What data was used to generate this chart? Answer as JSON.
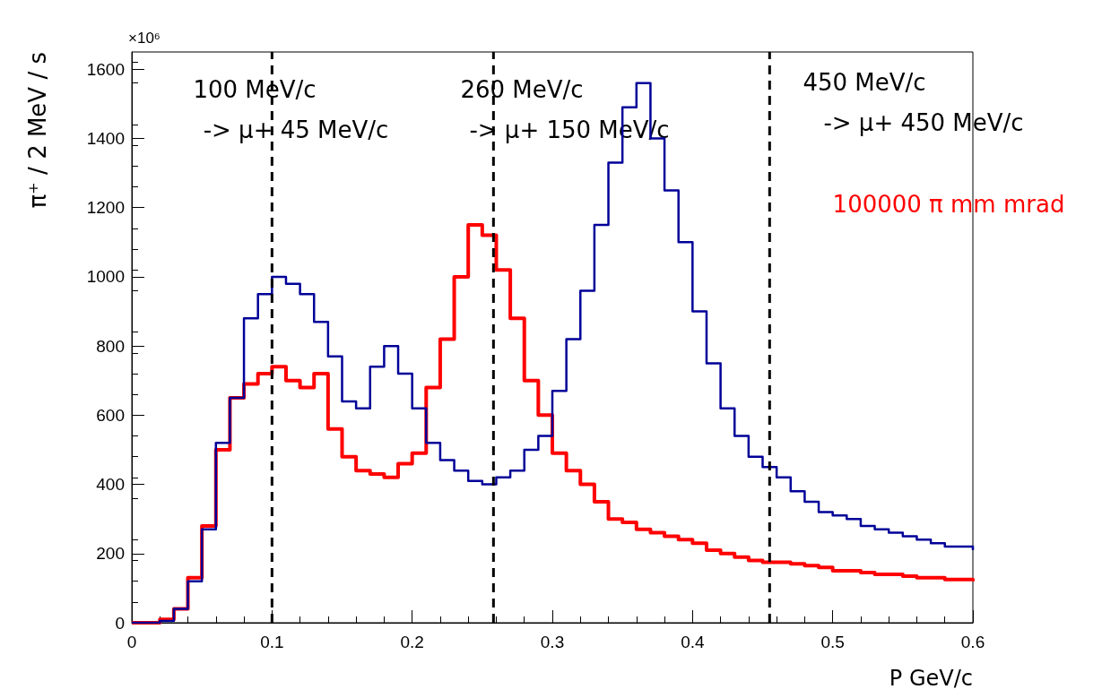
{
  "chart_data": {
    "type": "step",
    "xlabel": "P GeV/c",
    "ylabel": "π⁺ / 2 MeV / s",
    "x": [
      0,
      0.01,
      0.02,
      0.03,
      0.04,
      0.05,
      0.06,
      0.07,
      0.08,
      0.09,
      0.1,
      0.11,
      0.12,
      0.13,
      0.14,
      0.15,
      0.16,
      0.17,
      0.18,
      0.19,
      0.2,
      0.21,
      0.22,
      0.23,
      0.24,
      0.25,
      0.26,
      0.27,
      0.28,
      0.29,
      0.3,
      0.31,
      0.32,
      0.33,
      0.34,
      0.35,
      0.36,
      0.37,
      0.38,
      0.39,
      0.4,
      0.41,
      0.42,
      0.43,
      0.44,
      0.45,
      0.46,
      0.47,
      0.48,
      0.49,
      0.5,
      0.51,
      0.52,
      0.53,
      0.54,
      0.55,
      0.56,
      0.57,
      0.58,
      0.59,
      0.6
    ],
    "series": [
      {
        "color": "#000099",
        "values": [
          0,
          0,
          5,
          40,
          120,
          270,
          520,
          650,
          880,
          950,
          1000,
          980,
          950,
          870,
          770,
          640,
          620,
          740,
          800,
          720,
          620,
          520,
          470,
          440,
          410,
          400,
          420,
          440,
          500,
          540,
          670,
          820,
          960,
          1150,
          1330,
          1490,
          1560,
          1400,
          1250,
          1100,
          900,
          750,
          620,
          540,
          480,
          450,
          420,
          380,
          350,
          320,
          310,
          300,
          280,
          270,
          260,
          250,
          240,
          230,
          220,
          220,
          210
        ]
      },
      {
        "color": "#ff0000",
        "values": [
          0,
          0,
          10,
          40,
          130,
          280,
          500,
          650,
          690,
          720,
          740,
          700,
          680,
          720,
          560,
          480,
          440,
          430,
          420,
          460,
          490,
          680,
          820,
          1000,
          1150,
          1120,
          1020,
          880,
          700,
          600,
          490,
          440,
          400,
          350,
          300,
          290,
          270,
          260,
          250,
          240,
          230,
          210,
          200,
          190,
          180,
          175,
          175,
          170,
          165,
          160,
          150,
          150,
          145,
          140,
          140,
          135,
          130,
          130,
          125,
          125,
          120
        ]
      }
    ],
    "xlim": [
      0,
      0.6
    ],
    "xticks": [
      0,
      0.1,
      0.2,
      0.3,
      0.4,
      0.5,
      0.6
    ],
    "ylim": [
      0,
      1650
    ],
    "yticks": [
      0,
      200,
      400,
      600,
      800,
      1000,
      1200,
      1400,
      1600
    ],
    "grid": false,
    "line_style": "solid",
    "ref_lines": [
      {
        "axis": "x",
        "value": 0.1,
        "color": "#000000",
        "line_style": "dashed"
      },
      {
        "axis": "x",
        "value": 0.258,
        "color": "#000000",
        "line_style": "dashed"
      },
      {
        "axis": "x",
        "value": 0.455,
        "color": "#000000",
        "line_style": "dashed"
      }
    ],
    "annotations": [
      "100 MeV/c",
      "-> μ+ 45 MeV/c",
      "260 MeV/c",
      "-> μ+ 150 MeV/c",
      "450 MeV/c",
      "-> μ+ 450 MeV/c",
      "100000 π mm mrad",
      "×10⁶"
    ]
  }
}
